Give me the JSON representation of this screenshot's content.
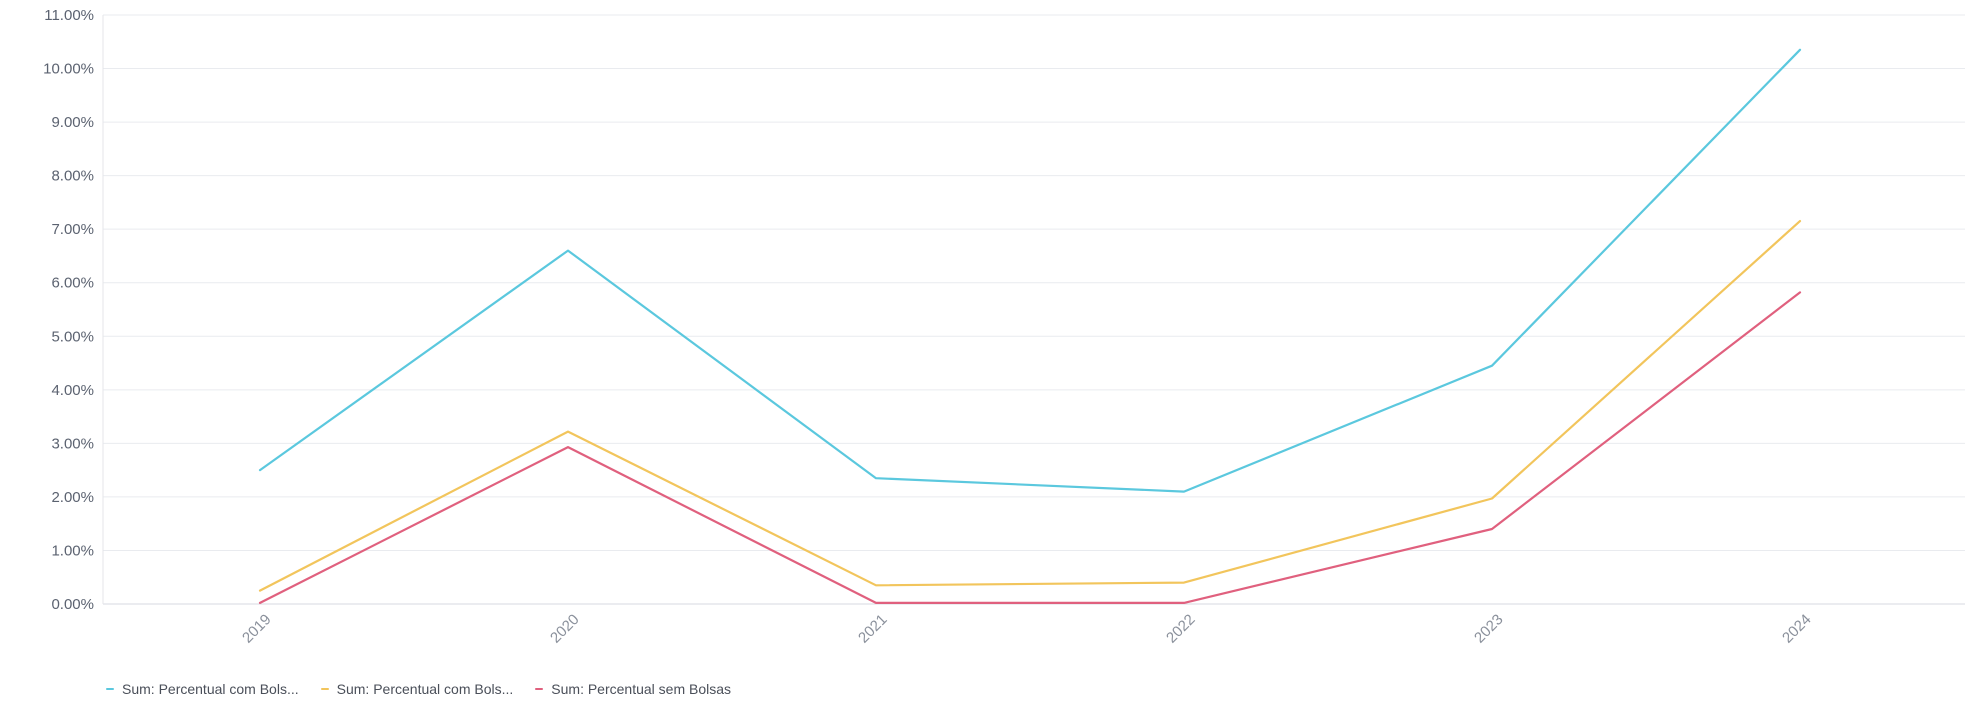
{
  "chart_data": {
    "type": "line",
    "x": [
      "2019",
      "2020",
      "2021",
      "2022",
      "2023",
      "2024"
    ],
    "y_ticks": [
      "0.00%",
      "1.00%",
      "2.00%",
      "3.00%",
      "4.00%",
      "5.00%",
      "6.00%",
      "7.00%",
      "8.00%",
      "9.00%",
      "10.00%",
      "11.00%"
    ],
    "ylim": [
      0,
      11
    ],
    "y_unit": "%",
    "grid": true,
    "legend_position": "bottom-left",
    "series": [
      {
        "name": "Sum: Percentual com Bols...",
        "color": "#5bc8de",
        "values": [
          2.5,
          6.6,
          2.35,
          2.1,
          4.45,
          10.35
        ]
      },
      {
        "name": "Sum: Percentual com Bols...",
        "color": "#f2c55c",
        "values": [
          0.25,
          3.22,
          0.35,
          0.4,
          1.97,
          7.15
        ]
      },
      {
        "name": "Sum: Percentual sem Bolsas",
        "color": "#e0607e",
        "values": [
          0.02,
          2.93,
          0.02,
          0.02,
          1.4,
          5.82
        ]
      }
    ]
  }
}
